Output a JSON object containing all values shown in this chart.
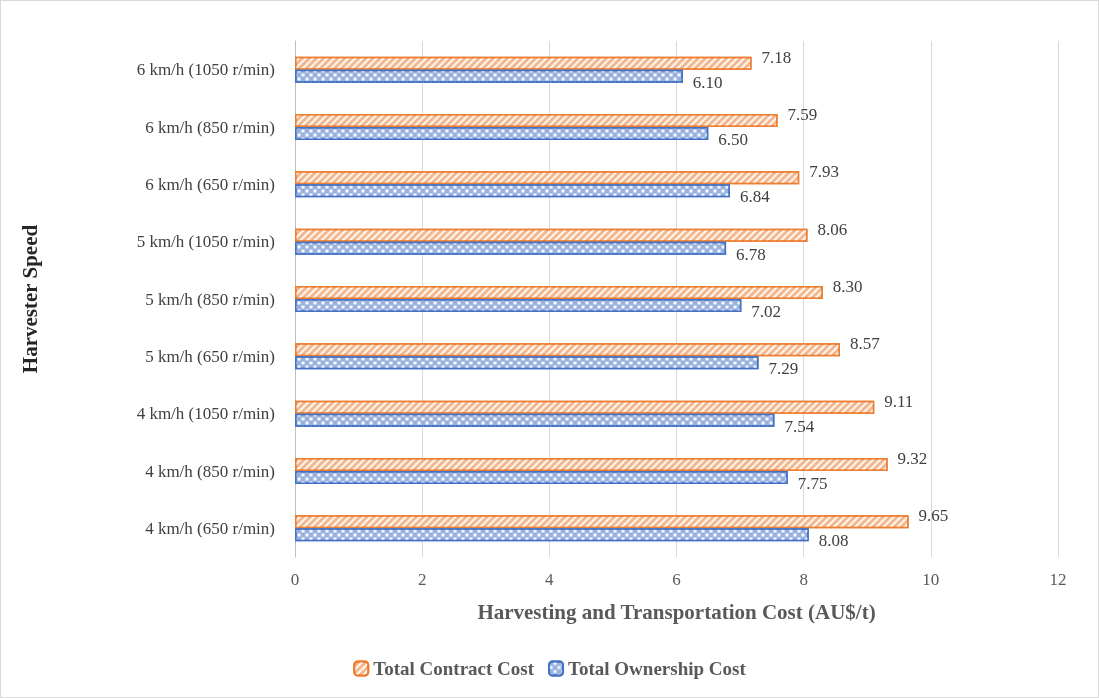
{
  "chart_data": {
    "type": "bar",
    "orientation": "horizontal",
    "xlabel": "Harvesting and Transportation Cost (AU$/t)",
    "ylabel": "Harvester Speed",
    "categories": [
      "6 km/h (1050 r/min)",
      "6 km/h (850 r/min)",
      "6 km/h (650 r/min)",
      "5 km/h (1050 r/min)",
      "5 km/h (850 r/min)",
      "5 km/h (650 r/min)",
      "4 km/h (1050 r/min)",
      "4 km/h (850 r/min)",
      "4 km/h (650 r/min)"
    ],
    "series": [
      {
        "name": "Total Contract Cost",
        "color": "#ed7d31",
        "values": [
          7.18,
          7.59,
          7.93,
          8.06,
          8.3,
          8.57,
          9.11,
          9.32,
          9.65
        ],
        "value_labels": [
          "7.18",
          "7.59",
          "7.93",
          "8.06",
          "8.30",
          "8.57",
          "9.11",
          "9.32",
          "9.65"
        ]
      },
      {
        "name": "Total Ownership Cost",
        "color": "#4472c4",
        "values": [
          6.1,
          6.5,
          6.84,
          6.78,
          7.02,
          7.29,
          7.54,
          7.75,
          8.08
        ],
        "value_labels": [
          "6.10",
          "6.50",
          "6.84",
          "6.78",
          "7.02",
          "7.29",
          "7.54",
          "7.75",
          "8.08"
        ]
      }
    ],
    "xlim": [
      0,
      12
    ],
    "xticks": [
      0,
      2,
      4,
      6,
      8,
      10,
      12
    ],
    "grid": "x",
    "legend": "bottom"
  }
}
